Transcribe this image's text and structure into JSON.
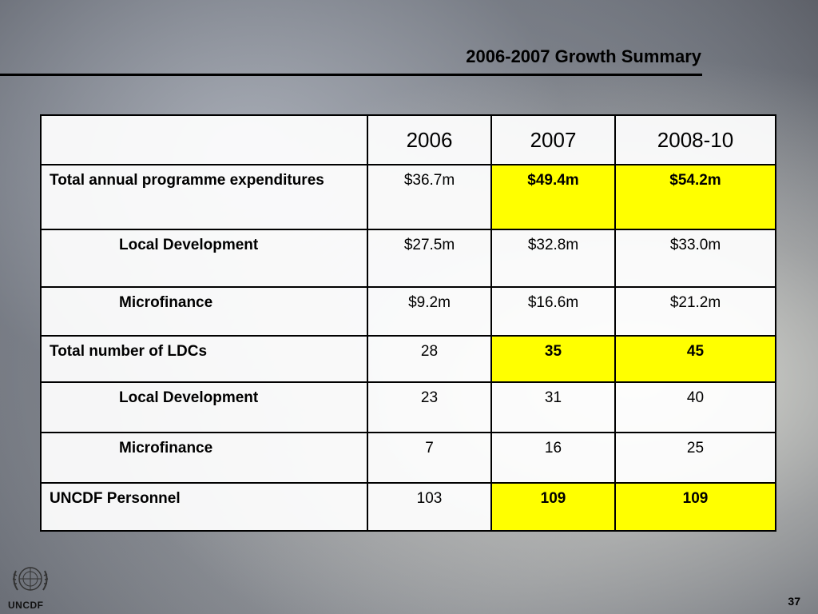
{
  "slide": {
    "title": "2006-2007 Growth Summary",
    "page_number": "37",
    "logo_text": "UNCDF"
  },
  "table": {
    "headers": [
      "",
      "2006",
      "2007",
      "2008-10"
    ],
    "rows": [
      {
        "label": "Total annual programme expenditures",
        "indent": false,
        "values": [
          "$36.7m",
          "$49.4m",
          "$54.2m"
        ],
        "highlight": [
          false,
          true,
          true
        ]
      },
      {
        "label": "Local Development",
        "indent": true,
        "values": [
          "$27.5m",
          "$32.8m",
          "$33.0m"
        ],
        "highlight": [
          false,
          false,
          false
        ]
      },
      {
        "label": "Microfinance",
        "indent": true,
        "values": [
          "$9.2m",
          "$16.6m",
          "$21.2m"
        ],
        "highlight": [
          false,
          false,
          false
        ]
      },
      {
        "label": "Total number of LDCs",
        "indent": false,
        "values": [
          "28",
          "35",
          "45"
        ],
        "highlight": [
          false,
          true,
          true
        ]
      },
      {
        "label": "Local Development",
        "indent": true,
        "values": [
          "23",
          "31",
          "40"
        ],
        "highlight": [
          false,
          false,
          false
        ]
      },
      {
        "label": "Microfinance",
        "indent": true,
        "values": [
          "7",
          "16",
          "25"
        ],
        "highlight": [
          false,
          false,
          false
        ]
      },
      {
        "label": "UNCDF Personnel",
        "indent": false,
        "values": [
          "103",
          "109",
          "109"
        ],
        "highlight": [
          false,
          true,
          true
        ]
      }
    ]
  },
  "colors": {
    "highlight": "#ffff00",
    "rule": "#000000"
  }
}
